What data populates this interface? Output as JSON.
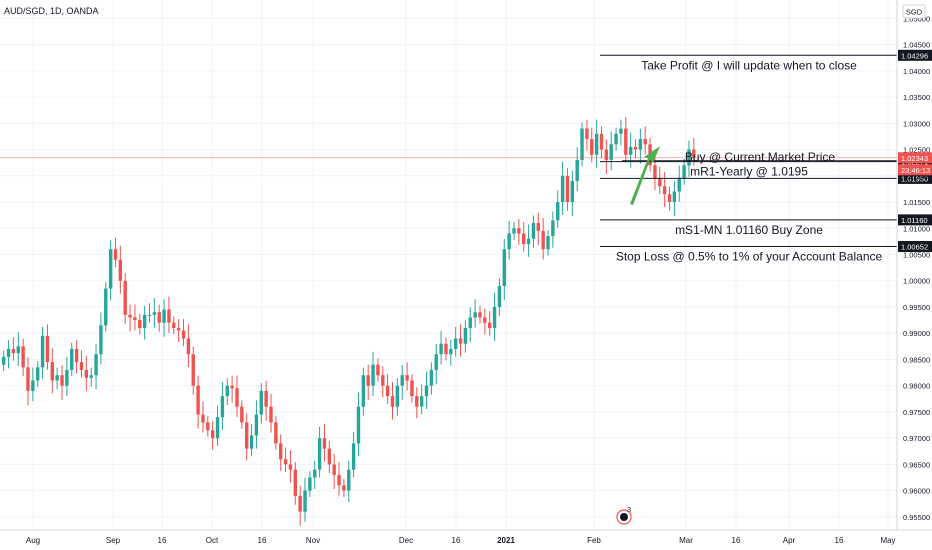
{
  "chart_data": {
    "type": "candlestick",
    "title": "AUD/SGD, 1D, OANDA",
    "currency": "SGD",
    "ylim": [
      0.9525,
      1.0535
    ],
    "y_ticks": [
      "1.05000",
      "1.04500",
      "1.04000",
      "1.03500",
      "1.03000",
      "1.02500",
      "1.02000",
      "1.01500",
      "1.01000",
      "1.00500",
      "1.00000",
      "0.99500",
      "0.99000",
      "0.98500",
      "0.98000",
      "0.97500",
      "0.97000",
      "0.96500",
      "0.96000",
      "0.95500"
    ],
    "x_ticks": [
      "Aug",
      "Sep",
      "16",
      "Oct",
      "16",
      "Nov",
      "Dec",
      "16",
      "2021",
      "Feb",
      "Mar",
      "16",
      "Apr",
      "16",
      "May"
    ],
    "candle_closes": [
      0.9855,
      0.987,
      0.9862,
      0.9875,
      0.9835,
      0.979,
      0.981,
      0.9835,
      0.9895,
      0.9845,
      0.981,
      0.982,
      0.98,
      0.983,
      0.987,
      0.9845,
      0.983,
      0.9815,
      0.982,
      0.986,
      0.9915,
      0.9985,
      1.006,
      1.004,
      1.0,
      0.9935,
      0.993,
      0.9925,
      0.991,
      0.9935,
      0.9935,
      0.994,
      0.992,
      0.9945,
      0.992,
      0.991,
      0.9905,
      0.989,
      0.986,
      0.98,
      0.9745,
      0.973,
      0.9715,
      0.97,
      0.974,
      0.978,
      0.98,
      0.9795,
      0.976,
      0.973,
      0.968,
      0.9705,
      0.9745,
      0.979,
      0.976,
      0.973,
      0.969,
      0.966,
      0.965,
      0.964,
      0.959,
      0.956,
      0.96,
      0.9625,
      0.964,
      0.97,
      0.968,
      0.965,
      0.963,
      0.961,
      0.96,
      0.964,
      0.969,
      0.976,
      0.982,
      0.98,
      0.984,
      0.982,
      0.98,
      0.978,
      0.976,
      0.98,
      0.982,
      0.981,
      0.978,
      0.976,
      0.978,
      0.98,
      0.983,
      0.986,
      0.988,
      0.986,
      0.987,
      0.989,
      0.988,
      0.991,
      0.993,
      0.994,
      0.993,
      0.992,
      0.991,
      0.995,
      0.999,
      1.006,
      1.009,
      1.01,
      1.009,
      1.007,
      1.008,
      1.011,
      1.0095,
      1.006,
      1.0085,
      1.0115,
      1.015,
      1.02,
      1.015,
      1.019,
      1.023,
      1.029,
      1.027,
      1.024,
      1.028,
      1.025,
      1.023,
      1.026,
      1.028,
      1.029,
      1.024,
      1.0255,
      1.025,
      1.027,
      1.026,
      1.022,
      1.0195,
      1.018,
      1.0165,
      1.015,
      1.017,
      1.0195,
      1.022,
      1.025,
      1.0234
    ],
    "levels": [
      {
        "price": "1.04296",
        "label": "Take Profit @ I will update when to close"
      },
      {
        "price": "1.02271",
        "label": "mR1-Yearly @ 1.0195"
      },
      {
        "price": "1.01950",
        "label": ""
      },
      {
        "price": "1.01160",
        "label": "mS1-MN 1.01160 Buy Zone"
      },
      {
        "price": "1.00652",
        "label": "Stop Loss @ 0.5% to 1% of your Account Balance"
      }
    ],
    "buy_label": "Buy @ Current Market Price",
    "current_price": "1.02343",
    "countdown": "23:46:13",
    "colors": {
      "up": "#26a69a",
      "down": "#ef5350",
      "price_line": "#ef5350",
      "arrow": "#4caf50",
      "level_box": "#131722"
    }
  },
  "badge_count": "3"
}
